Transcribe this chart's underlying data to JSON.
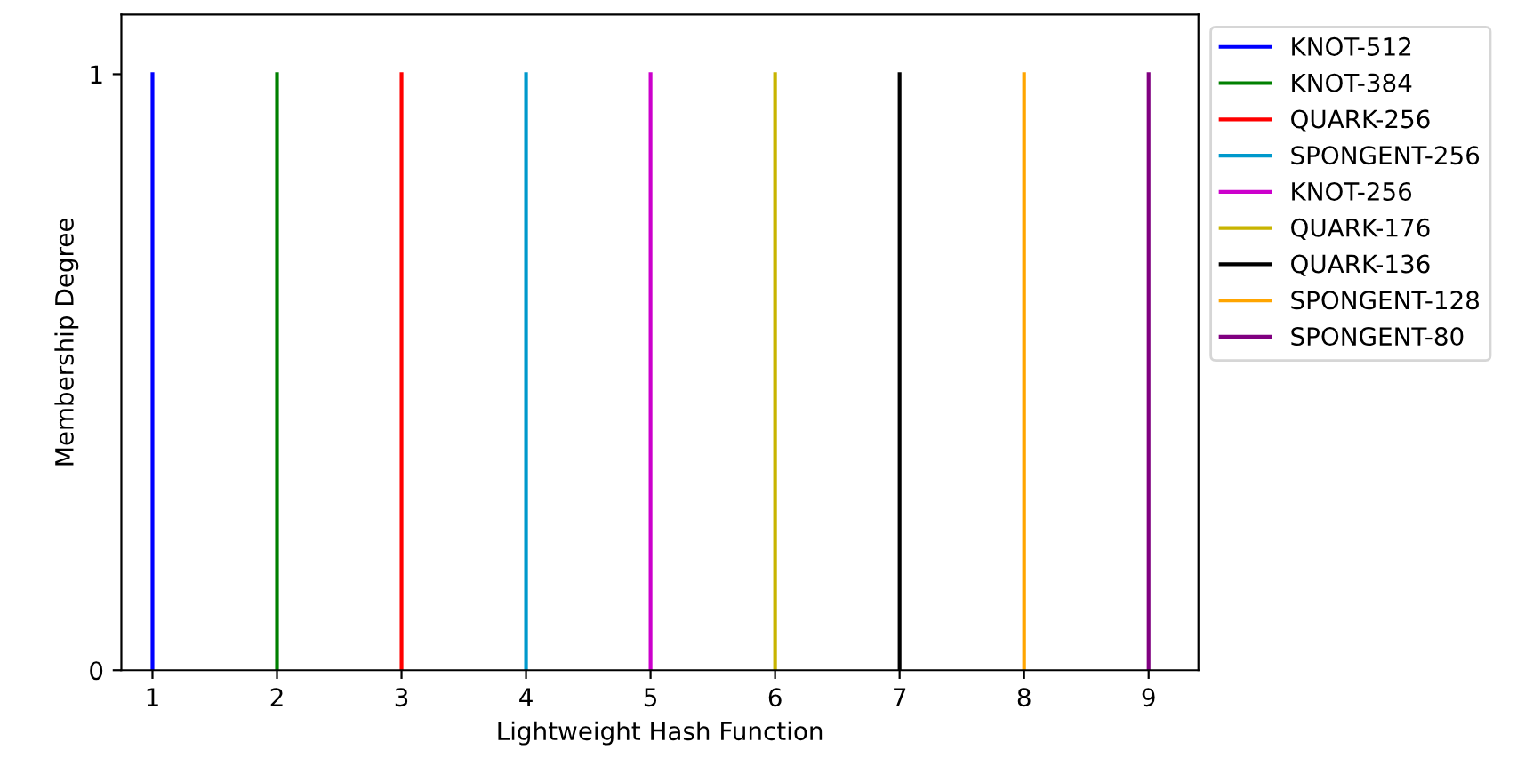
{
  "chart_data": {
    "type": "line",
    "xlabel": "Lightweight Hash Function",
    "ylabel": "Membership Degree",
    "series": [
      {
        "name": "KNOT-512",
        "color": "#0000ff",
        "x": [
          1,
          1
        ],
        "values": [
          0,
          1
        ]
      },
      {
        "name": "KNOT-384",
        "color": "#008000",
        "x": [
          2,
          2
        ],
        "values": [
          0,
          1
        ]
      },
      {
        "name": "QUARK-256",
        "color": "#ff0000",
        "x": [
          3,
          3
        ],
        "values": [
          0,
          1
        ]
      },
      {
        "name": "SPONGENT-256",
        "color": "#0099cc",
        "x": [
          4,
          4
        ],
        "values": [
          0,
          1
        ]
      },
      {
        "name": "KNOT-256",
        "color": "#cc00cc",
        "x": [
          5,
          5
        ],
        "values": [
          0,
          1
        ]
      },
      {
        "name": "QUARK-176",
        "color": "#c8b400",
        "x": [
          6,
          6
        ],
        "values": [
          0,
          1
        ]
      },
      {
        "name": "QUARK-136",
        "color": "#000000",
        "x": [
          7,
          7
        ],
        "values": [
          0,
          1
        ]
      },
      {
        "name": "SPONGENT-128",
        "color": "#ffa500",
        "x": [
          8,
          8
        ],
        "values": [
          0,
          1
        ]
      },
      {
        "name": "SPONGENT-80",
        "color": "#800080",
        "x": [
          9,
          9
        ],
        "values": [
          0,
          1
        ]
      }
    ],
    "xlim": [
      0.75,
      9.4
    ],
    "ylim": [
      0,
      1.1
    ],
    "xticks": [
      1,
      2,
      3,
      4,
      5,
      6,
      7,
      8,
      9
    ],
    "yticks": [
      0,
      1
    ],
    "grid": false,
    "legend": "top right",
    "marker": "none",
    "line_style": "solid"
  }
}
